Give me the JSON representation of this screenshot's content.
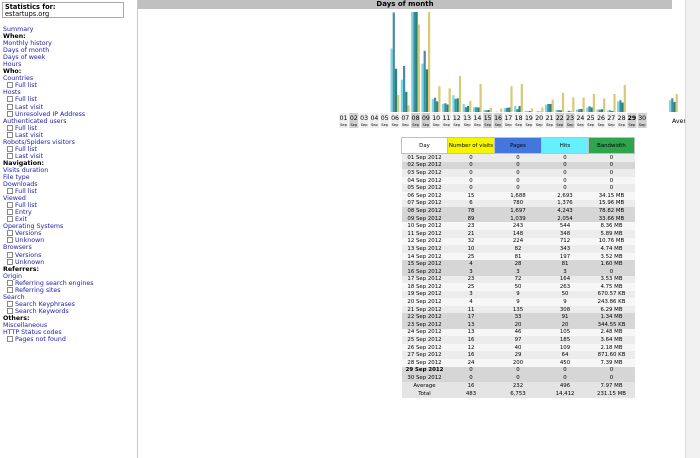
{
  "site": {
    "label": "Statistics for:",
    "name": "estartups.org"
  },
  "nav": [
    {
      "t": "Summary",
      "k": "link"
    },
    {
      "t": "When:",
      "k": "h"
    },
    {
      "t": "Monthly history",
      "k": "link"
    },
    {
      "t": "Days of month",
      "k": "link"
    },
    {
      "t": "Days of week",
      "k": "link"
    },
    {
      "t": "Hours",
      "k": "link"
    },
    {
      "t": "Who:",
      "k": "h"
    },
    {
      "t": "Countries",
      "k": "link"
    },
    {
      "t": "Full list",
      "k": "sub"
    },
    {
      "t": "Hosts",
      "k": "link"
    },
    {
      "t": "Full list",
      "k": "sub"
    },
    {
      "t": "Last visit",
      "k": "sub"
    },
    {
      "t": "Unresolved IP Address",
      "k": "sub"
    },
    {
      "t": "Authenticated users",
      "k": "link"
    },
    {
      "t": "Full list",
      "k": "sub"
    },
    {
      "t": "Last visit",
      "k": "sub"
    },
    {
      "t": "Robots/Spiders visitors",
      "k": "link"
    },
    {
      "t": "Full list",
      "k": "sub"
    },
    {
      "t": "Last visit",
      "k": "sub"
    },
    {
      "t": "Navigation:",
      "k": "h"
    },
    {
      "t": "Visits duration",
      "k": "link"
    },
    {
      "t": "File type",
      "k": "link"
    },
    {
      "t": "Downloads",
      "k": "link"
    },
    {
      "t": "Full list",
      "k": "sub"
    },
    {
      "t": "Viewed",
      "k": "link"
    },
    {
      "t": "Full list",
      "k": "sub"
    },
    {
      "t": "Entry",
      "k": "sub"
    },
    {
      "t": "Exit",
      "k": "sub"
    },
    {
      "t": "Operating Systems",
      "k": "link"
    },
    {
      "t": "Versions",
      "k": "sub"
    },
    {
      "t": "Unknown",
      "k": "sub"
    },
    {
      "t": "Browsers",
      "k": "link"
    },
    {
      "t": "Versions",
      "k": "sub"
    },
    {
      "t": "Unknown",
      "k": "sub"
    },
    {
      "t": "Referrers:",
      "k": "h"
    },
    {
      "t": "Origin",
      "k": "link"
    },
    {
      "t": "Referring search engines",
      "k": "sub"
    },
    {
      "t": "Referring sites",
      "k": "sub"
    },
    {
      "t": "Search",
      "k": "link"
    },
    {
      "t": "Search Keyphrases",
      "k": "sub"
    },
    {
      "t": "Search Keywords",
      "k": "sub"
    },
    {
      "t": "Others:",
      "k": "h"
    },
    {
      "t": "Miscellaneous",
      "k": "link"
    },
    {
      "t": "HTTP Status codes",
      "k": "link"
    },
    {
      "t": "Pages not found",
      "k": "sub"
    }
  ],
  "title": "Days of month",
  "colors": {
    "visits": "#f5f500",
    "pages": "#4477dd",
    "hits": "#66f0ff",
    "bandwidth": "#2ea44f",
    "chart_visits": "#d8c878",
    "chart_pages": "#4a8aa8",
    "chart_hits": "#7ad8e0",
    "chart_bw": "#208870"
  },
  "table": {
    "headers": [
      "Day",
      "Number of visits",
      "Pages",
      "Hits",
      "Bandwidth"
    ],
    "rows": [
      {
        "day": "01 Sep 2012",
        "visits": "0",
        "pages": "0",
        "hits": "0",
        "bw": "0"
      },
      {
        "day": "02 Sep 2012",
        "visits": "0",
        "pages": "0",
        "hits": "0",
        "bw": "0",
        "we": true
      },
      {
        "day": "03 Sep 2012",
        "visits": "0",
        "pages": "0",
        "hits": "0",
        "bw": "0"
      },
      {
        "day": "04 Sep 2012",
        "visits": "0",
        "pages": "0",
        "hits": "0",
        "bw": "0"
      },
      {
        "day": "05 Sep 2012",
        "visits": "0",
        "pages": "0",
        "hits": "0",
        "bw": "0"
      },
      {
        "day": "06 Sep 2012",
        "visits": "15",
        "pages": "1,688",
        "hits": "2,693",
        "bw": "34.15 MB"
      },
      {
        "day": "07 Sep 2012",
        "visits": "6",
        "pages": "780",
        "hits": "1,376",
        "bw": "15.96 MB"
      },
      {
        "day": "08 Sep 2012",
        "visits": "78",
        "pages": "1,697",
        "hits": "4,243",
        "bw": "78.82 MB",
        "we": true
      },
      {
        "day": "09 Sep 2012",
        "visits": "89",
        "pages": "1,039",
        "hits": "2,054",
        "bw": "33.66 MB",
        "we": true
      },
      {
        "day": "10 Sep 2012",
        "visits": "23",
        "pages": "243",
        "hits": "544",
        "bw": "8.36 MB"
      },
      {
        "day": "11 Sep 2012",
        "visits": "21",
        "pages": "148",
        "hits": "348",
        "bw": "5.89 MB"
      },
      {
        "day": "12 Sep 2012",
        "visits": "32",
        "pages": "224",
        "hits": "712",
        "bw": "10.76 MB"
      },
      {
        "day": "13 Sep 2012",
        "visits": "10",
        "pages": "82",
        "hits": "343",
        "bw": "4.74 MB"
      },
      {
        "day": "14 Sep 2012",
        "visits": "25",
        "pages": "81",
        "hits": "197",
        "bw": "3.52 MB"
      },
      {
        "day": "15 Sep 2012",
        "visits": "4",
        "pages": "28",
        "hits": "81",
        "bw": "1.60 MB",
        "we": true
      },
      {
        "day": "16 Sep 2012",
        "visits": "3",
        "pages": "3",
        "hits": "3",
        "bw": "0",
        "we": true
      },
      {
        "day": "17 Sep 2012",
        "visits": "23",
        "pages": "72",
        "hits": "164",
        "bw": "3.53 MB"
      },
      {
        "day": "18 Sep 2012",
        "visits": "25",
        "pages": "50",
        "hits": "263",
        "bw": "4.75 MB"
      },
      {
        "day": "19 Sep 2012",
        "visits": "3",
        "pages": "9",
        "hits": "50",
        "bw": "670.57 KB"
      },
      {
        "day": "20 Sep 2012",
        "visits": "4",
        "pages": "9",
        "hits": "9",
        "bw": "243.86 KB"
      },
      {
        "day": "21 Sep 2012",
        "visits": "11",
        "pages": "135",
        "hits": "308",
        "bw": "6.29 MB"
      },
      {
        "day": "22 Sep 2012",
        "visits": "17",
        "pages": "33",
        "hits": "91",
        "bw": "1.34 MB",
        "we": true
      },
      {
        "day": "23 Sep 2012",
        "visits": "13",
        "pages": "20",
        "hits": "20",
        "bw": "344.55 KB",
        "we": true
      },
      {
        "day": "24 Sep 2012",
        "visits": "13",
        "pages": "46",
        "hits": "105",
        "bw": "2.48 MB"
      },
      {
        "day": "25 Sep 2012",
        "visits": "16",
        "pages": "97",
        "hits": "185",
        "bw": "3.64 MB"
      },
      {
        "day": "26 Sep 2012",
        "visits": "12",
        "pages": "40",
        "hits": "109",
        "bw": "2.18 MB"
      },
      {
        "day": "27 Sep 2012",
        "visits": "16",
        "pages": "29",
        "hits": "64",
        "bw": "871.60 KB"
      },
      {
        "day": "28 Sep 2012",
        "visits": "24",
        "pages": "200",
        "hits": "450",
        "bw": "7.39 MB"
      },
      {
        "day": "29 Sep 2012",
        "visits": "0",
        "pages": "0",
        "hits": "0",
        "bw": "0",
        "we": true,
        "bold": true
      },
      {
        "day": "30 Sep 2012",
        "visits": "0",
        "pages": "0",
        "hits": "0",
        "bw": "0",
        "we": true
      }
    ],
    "footer": [
      {
        "day": "Average",
        "visits": "16",
        "pages": "232",
        "hits": "496",
        "bw": "7.97 MB"
      },
      {
        "day": "Total",
        "visits": "483",
        "pages": "6,753",
        "hits": "14,412",
        "bw": "231.15 MB"
      }
    ]
  },
  "chart_data": {
    "type": "bar",
    "categories": [
      "01",
      "02",
      "03",
      "04",
      "05",
      "06",
      "07",
      "08",
      "09",
      "10",
      "11",
      "12",
      "13",
      "14",
      "15",
      "16",
      "17",
      "18",
      "19",
      "20",
      "21",
      "22",
      "23",
      "24",
      "25",
      "26",
      "27",
      "28",
      "29",
      "30"
    ],
    "sublabels": [
      "Sep",
      "Sep",
      "Sep",
      "Sep",
      "Sep",
      "Sep",
      "Sep",
      "Sep",
      "Sep",
      "Sep",
      "Sep",
      "Sep",
      "Sep",
      "Sep",
      "Sep",
      "Sep",
      "Sep",
      "Sep",
      "Sep",
      "Sep",
      "Sep",
      "Sep",
      "Sep",
      "Sep",
      "Sep",
      "Sep",
      "Sep",
      "Sep",
      "Sep",
      "Sep"
    ],
    "weekend": [
      false,
      true,
      false,
      false,
      false,
      false,
      false,
      true,
      true,
      false,
      false,
      false,
      false,
      false,
      true,
      true,
      false,
      false,
      false,
      false,
      false,
      true,
      true,
      false,
      false,
      false,
      false,
      false,
      true,
      true
    ],
    "average_label": "Average",
    "series": [
      {
        "values": [
          0,
          0,
          0,
          0,
          0,
          15,
          6,
          78,
          89,
          23,
          21,
          32,
          10,
          25,
          4,
          3,
          23,
          25,
          3,
          4,
          11,
          17,
          13,
          13,
          16,
          12,
          16,
          24,
          0,
          0
        ]
      },
      {
        "values": [
          0,
          0,
          0,
          0,
          0,
          1688,
          780,
          1697,
          1039,
          243,
          148,
          224,
          82,
          81,
          28,
          3,
          72,
          50,
          9,
          9,
          135,
          33,
          20,
          46,
          97,
          40,
          29,
          200,
          0,
          0
        ]
      },
      {
        "values": [
          0,
          0,
          0,
          0,
          0,
          2693,
          1376,
          4243,
          2054,
          544,
          348,
          712,
          343,
          197,
          81,
          3,
          164,
          263,
          50,
          9,
          308,
          91,
          20,
          105,
          185,
          109,
          64,
          450,
          0,
          0
        ]
      },
      {
        "values": [
          0,
          0,
          0,
          0,
          0,
          34.15,
          15.96,
          78.82,
          33.66,
          8.36,
          5.89,
          10.76,
          4.74,
          3.52,
          1.6,
          0,
          3.53,
          4.75,
          0.67,
          0.24,
          6.29,
          1.34,
          0.34,
          2.48,
          3.64,
          2.18,
          0.87,
          7.39,
          0,
          0
        ]
      }
    ],
    "average": [
      16,
      232,
      496,
      7.97
    ]
  }
}
